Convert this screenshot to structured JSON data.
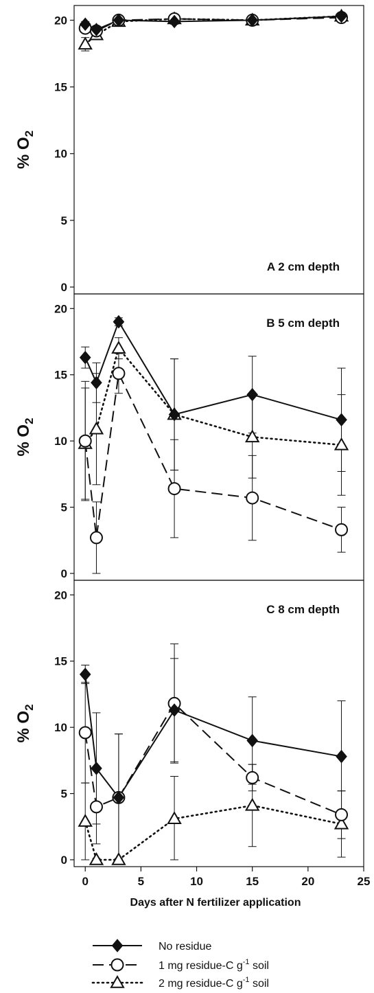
{
  "chart_data": {
    "type": "line",
    "x_shared": {
      "xlabel": "Days after N fertilizer application",
      "xlim": [
        -1,
        25
      ],
      "xticks": [
        0,
        5,
        10,
        15,
        20,
        25
      ]
    },
    "legend": {
      "placement": "bottom",
      "entries": [
        {
          "text": "No residue",
          "marker": "filled-diamond",
          "line": "solid"
        },
        {
          "text_parts": [
            "1 mg residue-C g",
            "-1",
            " soil"
          ],
          "marker": "open-circle",
          "line": "dashed"
        },
        {
          "text_parts": [
            "2 mg residue-C g",
            "-1",
            " soil"
          ],
          "marker": "open-triangle",
          "line": "dotted"
        }
      ]
    },
    "panels": [
      {
        "label": "A  2 cm depth",
        "ylabel_parts": [
          "% O",
          "2"
        ],
        "ylim": [
          0,
          21
        ],
        "yticks": [
          0,
          5,
          10,
          15,
          20
        ],
        "series": [
          {
            "key": "no_residue",
            "x": [
              0,
              1,
              3,
              8,
              15,
              23
            ],
            "y": [
              19.7,
              19.3,
              20.0,
              19.9,
              20.0,
              20.3
            ],
            "err": [
              0.2,
              0.2,
              0.2,
              0.2,
              0.2,
              0.2
            ]
          },
          {
            "key": "one_mg",
            "x": [
              0,
              1,
              3,
              8,
              15,
              23
            ],
            "y": [
              19.4,
              19.2,
              20.0,
              20.1,
              20.0,
              20.2
            ],
            "err": [
              0.3,
              0.2,
              0.2,
              0.2,
              0.2,
              0.2
            ]
          },
          {
            "key": "two_mg",
            "x": [
              0,
              1,
              3,
              8,
              15,
              23
            ],
            "y": [
              18.2,
              18.9,
              19.9,
              20.1,
              20.0,
              20.3
            ],
            "err": [
              0.5,
              0.3,
              0.2,
              0.2,
              0.2,
              0.2
            ]
          }
        ]
      },
      {
        "label": "B  5 cm depth",
        "ylabel_parts": [
          "% O",
          "2"
        ],
        "ylim": [
          0,
          21
        ],
        "yticks": [
          0,
          5,
          10,
          15,
          20
        ],
        "series": [
          {
            "key": "no_residue",
            "x": [
              0,
              1,
              3,
              8,
              15,
              23
            ],
            "y": [
              16.3,
              14.4,
              19.0,
              12.0,
              13.5,
              11.6
            ],
            "err": [
              0.8,
              1.5,
              0.3,
              4.2,
              2.9,
              3.9
            ]
          },
          {
            "key": "one_mg",
            "x": [
              0,
              1,
              3,
              8,
              15,
              23
            ],
            "y": [
              10.0,
              2.7,
              15.1,
              6.4,
              5.7,
              3.3
            ],
            "err": [
              4.5,
              2.7,
              1.5,
              3.7,
              3.2,
              1.7
            ]
          },
          {
            "key": "two_mg",
            "x": [
              0,
              1,
              3,
              8,
              15,
              23
            ],
            "y": [
              9.8,
              10.9,
              17.0,
              12.0,
              10.3,
              9.7
            ],
            "err": [
              4.2,
              4.2,
              0.8,
              4.2,
              3.1,
              3.8
            ]
          }
        ]
      },
      {
        "label": "C  8 cm depth",
        "ylabel_parts": [
          "% O",
          "2"
        ],
        "ylim": [
          0,
          21
        ],
        "yticks": [
          0,
          5,
          10,
          15,
          20
        ],
        "series": [
          {
            "key": "no_residue",
            "x": [
              0,
              1,
              3,
              8,
              15,
              23
            ],
            "y": [
              14.0,
              6.9,
              4.7,
              11.3,
              9.0,
              7.8
            ],
            "err": [
              0.7,
              4.2,
              4.8,
              3.9,
              3.3,
              4.2
            ]
          },
          {
            "key": "one_mg",
            "x": [
              0,
              1,
              3,
              8,
              15,
              23
            ],
            "y": [
              9.6,
              4.0,
              4.7,
              11.8,
              6.2,
              3.4
            ],
            "err": [
              3.8,
              2.8,
              4.8,
              4.5,
              1.0,
              1.8
            ]
          },
          {
            "key": "two_mg",
            "x": [
              0,
              1,
              3,
              8,
              15,
              23
            ],
            "y": [
              2.9,
              0.0,
              0.0,
              3.1,
              4.1,
              2.7
            ],
            "err": [
              2.9,
              0.1,
              0.1,
              3.2,
              3.1,
              2.5
            ]
          }
        ]
      }
    ]
  }
}
